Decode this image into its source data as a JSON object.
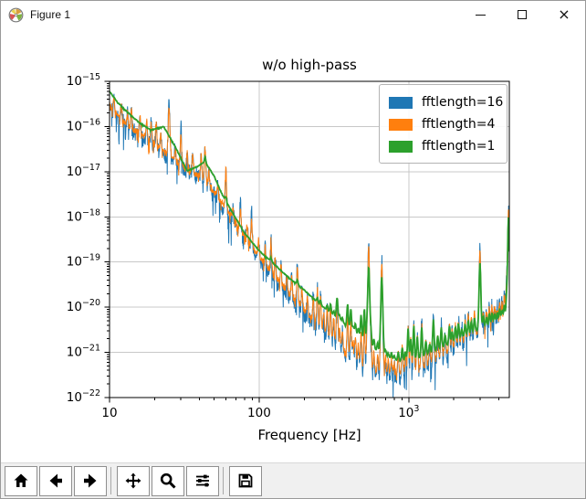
{
  "window": {
    "title": "Figure 1",
    "controls": [
      "minimize",
      "maximize",
      "close"
    ]
  },
  "chart_data": {
    "type": "line",
    "title": "w/o high-pass",
    "xlabel": "Frequency [Hz]",
    "ylabel": "",
    "xscale": "log",
    "yscale": "log",
    "xlim": [
      10,
      4700
    ],
    "ylim_exponents": [
      -22,
      -15
    ],
    "grid": true,
    "legend_position": "upper right",
    "x_ticks": [
      {
        "value": 10,
        "label": "10",
        "exp": ""
      },
      {
        "value": 100,
        "label": "100",
        "exp": ""
      },
      {
        "value": 1000,
        "label": "10",
        "exp": "3"
      }
    ],
    "y_tick_exponents": [
      -15,
      -16,
      -17,
      -18,
      -19,
      -20,
      -21,
      -22
    ],
    "series": [
      {
        "name": "fftlength=16",
        "color": "#1f77b4",
        "noise_halfrange_decades": 0.22,
        "samples": 1600,
        "stroke_width": 1.0,
        "line_height_index": 1,
        "backbone_log10": [
          [
            10,
            -15.6
          ],
          [
            12.6,
            -15.95
          ],
          [
            15.8,
            -16.2
          ],
          [
            20,
            -16.45
          ],
          [
            25,
            -16.7
          ],
          [
            31.6,
            -16.95
          ],
          [
            40,
            -17.15
          ],
          [
            50,
            -17.5
          ],
          [
            63,
            -17.95
          ],
          [
            79,
            -18.45
          ],
          [
            100,
            -18.95
          ],
          [
            126,
            -19.4
          ],
          [
            158,
            -19.8
          ],
          [
            200,
            -20.15
          ],
          [
            251,
            -20.55
          ],
          [
            316,
            -20.9
          ],
          [
            398,
            -21.2
          ],
          [
            500,
            -21.5
          ],
          [
            631,
            -21.62
          ],
          [
            794,
            -21.65
          ],
          [
            1000,
            -21.55
          ],
          [
            1260,
            -21.4
          ],
          [
            1580,
            -21.22
          ],
          [
            2000,
            -21.0
          ],
          [
            2510,
            -20.75
          ],
          [
            3160,
            -20.55
          ],
          [
            3800,
            -20.42
          ],
          [
            4360,
            -20.3
          ],
          [
            4700,
            -20.0
          ]
        ]
      },
      {
        "name": "fftlength=4",
        "color": "#ff7f0e",
        "noise_halfrange_decades": 0.1,
        "samples": 1600,
        "stroke_width": 1.0,
        "line_height_index": 2,
        "backbone_log10": [
          [
            10,
            -15.55
          ],
          [
            12.6,
            -15.9
          ],
          [
            15.8,
            -16.15
          ],
          [
            20,
            -16.4
          ],
          [
            25,
            -16.65
          ],
          [
            31.6,
            -16.9
          ],
          [
            40,
            -17.1
          ],
          [
            50,
            -17.45
          ],
          [
            63,
            -17.9
          ],
          [
            79,
            -18.4
          ],
          [
            100,
            -18.88
          ],
          [
            126,
            -19.3
          ],
          [
            158,
            -19.7
          ],
          [
            200,
            -20.05
          ],
          [
            251,
            -20.42
          ],
          [
            316,
            -20.75
          ],
          [
            398,
            -21.05
          ],
          [
            500,
            -21.32
          ],
          [
            631,
            -21.45
          ],
          [
            794,
            -21.48
          ],
          [
            1000,
            -21.4
          ],
          [
            1260,
            -21.28
          ],
          [
            1580,
            -21.1
          ],
          [
            2000,
            -20.9
          ],
          [
            2510,
            -20.68
          ],
          [
            3160,
            -20.48
          ],
          [
            3800,
            -20.35
          ],
          [
            4360,
            -20.22
          ],
          [
            4700,
            -19.95
          ]
        ]
      },
      {
        "name": "fftlength=1",
        "color": "#2ca02c",
        "noise_halfrange_decades": 0.015,
        "samples": 900,
        "stroke_width": 1.8,
        "line_height_index": 3,
        "backbone_log10": [
          [
            10,
            -15.22
          ],
          [
            11.2,
            -15.45
          ],
          [
            12.6,
            -15.62
          ],
          [
            15.8,
            -15.92
          ],
          [
            19,
            -16.08
          ],
          [
            23,
            -16.0
          ],
          [
            27.5,
            -16.45
          ],
          [
            33,
            -16.98
          ],
          [
            38,
            -16.9
          ],
          [
            43.5,
            -16.78
          ],
          [
            50,
            -17.1
          ],
          [
            57.5,
            -17.55
          ],
          [
            67.6,
            -17.95
          ],
          [
            79.4,
            -18.35
          ],
          [
            100,
            -18.75
          ],
          [
            126,
            -19.05
          ],
          [
            158,
            -19.35
          ],
          [
            200,
            -19.62
          ],
          [
            251,
            -19.92
          ],
          [
            316,
            -20.18
          ],
          [
            398,
            -20.45
          ],
          [
            500,
            -20.72
          ],
          [
            631,
            -21.0
          ],
          [
            760,
            -21.15
          ],
          [
            890,
            -21.2
          ],
          [
            1120,
            -21.15
          ],
          [
            1410,
            -21.0
          ],
          [
            1780,
            -20.85
          ],
          [
            2240,
            -20.68
          ],
          [
            2820,
            -20.52
          ],
          [
            3550,
            -20.38
          ],
          [
            4170,
            -20.28
          ],
          [
            4700,
            -20.2
          ]
        ]
      }
    ],
    "spectral_lines_comment": "[freq_Hz, height_blue, height_orange, height_green (decades above backbone), optional_width_logf]",
    "spectral_lines": [
      [
        10.7,
        0.3,
        0.28,
        0
      ],
      [
        12,
        0.35,
        0.3,
        0
      ],
      [
        13.2,
        0.3,
        0.25,
        0
      ],
      [
        14,
        0.45,
        0.4,
        0
      ],
      [
        16,
        0.45,
        0.4,
        0
      ],
      [
        17.7,
        0.45,
        0.4,
        0
      ],
      [
        19,
        0.45,
        0.42,
        0
      ],
      [
        20.5,
        0.55,
        0.5,
        0
      ],
      [
        22,
        0.4,
        0.35,
        0
      ],
      [
        25,
        1.3,
        1.05,
        0,
        0.006
      ],
      [
        27.5,
        0.35,
        0.3,
        0
      ],
      [
        30,
        0.85,
        0.65,
        0
      ],
      [
        33,
        0.4,
        0.35,
        0
      ],
      [
        36,
        0.5,
        0.4,
        0
      ],
      [
        41,
        0.55,
        0.5,
        0
      ],
      [
        43.5,
        0.9,
        0.8,
        0.1
      ],
      [
        46,
        0.4,
        0.35,
        0
      ],
      [
        53,
        0.3,
        0.25,
        0
      ],
      [
        59.9,
        0.95,
        0.9,
        0.1
      ],
      [
        67,
        0.3,
        0.2,
        0
      ],
      [
        75,
        0.65,
        0.45,
        0
      ],
      [
        83,
        0.4,
        0.3,
        0
      ],
      [
        89,
        0.8,
        0.55,
        0
      ],
      [
        99,
        0.45,
        0.35,
        0
      ],
      [
        110,
        0.5,
        0.4,
        0
      ],
      [
        120,
        0.85,
        0.7,
        0.1
      ],
      [
        128,
        0.55,
        0.4,
        0
      ],
      [
        140,
        0.5,
        0.4,
        0
      ],
      [
        153,
        0.45,
        0.35,
        0
      ],
      [
        165,
        0.55,
        0.45,
        0
      ],
      [
        180,
        0.95,
        0.8,
        0.1
      ],
      [
        193,
        0.5,
        0.4,
        0
      ],
      [
        210,
        0.45,
        0.35,
        0
      ],
      [
        230,
        0.65,
        0.5,
        0
      ],
      [
        245,
        0.95,
        0.75,
        0.1
      ],
      [
        257,
        0.85,
        0.7,
        0.1
      ],
      [
        270,
        0.5,
        0.4,
        0
      ],
      [
        285,
        0.75,
        0.6,
        0.1
      ],
      [
        300,
        0.85,
        0.7,
        0.2
      ],
      [
        315,
        0.6,
        0.5,
        0.1
      ],
      [
        332,
        1.25,
        1.05,
        0.45,
        0.005
      ],
      [
        345,
        0.5,
        0.4,
        0.1
      ],
      [
        360,
        0.5,
        0.4,
        0.1
      ],
      [
        390,
        1.05,
        0.85,
        0.5
      ],
      [
        410,
        0.95,
        0.8,
        0.45
      ],
      [
        425,
        0.5,
        0.4,
        0.1
      ],
      [
        440,
        0.6,
        0.5,
        0.2
      ],
      [
        460,
        0.5,
        0.4,
        0.15
      ],
      [
        480,
        0.85,
        0.7,
        0.5
      ],
      [
        505,
        1.1,
        0.95,
        0.7
      ],
      [
        525,
        0.5,
        0.4,
        0.2
      ],
      [
        540,
        2.95,
        2.7,
        1.7,
        0.007
      ],
      [
        560,
        0.6,
        0.5,
        0.25
      ],
      [
        585,
        0.5,
        0.4,
        0.2
      ],
      [
        620,
        0.5,
        0.4,
        0.2
      ],
      [
        660,
        2.6,
        2.4,
        1.7,
        0.007
      ],
      [
        700,
        0.45,
        0.35,
        0.15
      ],
      [
        730,
        0.4,
        0.3,
        0.1
      ],
      [
        765,
        0.45,
        0.35,
        0.15
      ],
      [
        800,
        0.4,
        0.3,
        0.1
      ],
      [
        850,
        0.55,
        0.45,
        0.2
      ],
      [
        905,
        0.7,
        0.55,
        0.3
      ],
      [
        950,
        0.5,
        0.4,
        0.2
      ],
      [
        990,
        1.15,
        0.95,
        0.7
      ],
      [
        1030,
        0.85,
        0.7,
        0.45
      ],
      [
        1080,
        1.2,
        1.0,
        0.75
      ],
      [
        1140,
        0.9,
        0.75,
        0.5
      ],
      [
        1220,
        1.1,
        0.9,
        0.65
      ],
      [
        1300,
        0.65,
        0.5,
        0.3
      ],
      [
        1380,
        0.5,
        0.4,
        0.2
      ],
      [
        1460,
        1.15,
        0.95,
        0.7
      ],
      [
        1560,
        0.6,
        0.5,
        0.3
      ],
      [
        1650,
        0.8,
        0.65,
        0.45
      ],
      [
        1750,
        0.5,
        0.4,
        0.25
      ],
      [
        1870,
        0.75,
        0.6,
        0.4
      ],
      [
        1950,
        0.5,
        0.4,
        0.25
      ],
      [
        2050,
        0.6,
        0.5,
        0.3
      ],
      [
        2150,
        0.7,
        0.55,
        0.35
      ],
      [
        2260,
        0.45,
        0.35,
        0.2
      ],
      [
        2380,
        0.55,
        0.45,
        0.25
      ],
      [
        2500,
        0.65,
        0.5,
        0.3
      ],
      [
        2620,
        0.5,
        0.4,
        0.25
      ],
      [
        2750,
        0.6,
        0.5,
        0.3
      ],
      [
        2990,
        1.95,
        1.75,
        1.45,
        0.006
      ],
      [
        3150,
        0.5,
        0.4,
        0.25
      ],
      [
        3300,
        0.45,
        0.35,
        0.2
      ],
      [
        3450,
        0.55,
        0.45,
        0.25
      ],
      [
        3600,
        0.5,
        0.4,
        0.25
      ],
      [
        3750,
        0.45,
        0.35,
        0.2
      ],
      [
        3900,
        0.4,
        0.3,
        0.2
      ],
      [
        4050,
        0.5,
        0.4,
        0.25
      ],
      [
        4200,
        0.45,
        0.35,
        0.2
      ],
      [
        4350,
        0.55,
        0.45,
        0.3
      ],
      [
        4500,
        0.6,
        0.5,
        0.35
      ],
      [
        4640,
        2.3,
        2.2,
        2.2,
        0.006
      ]
    ]
  },
  "toolbar": {
    "button_icons": [
      "home",
      "back",
      "forward",
      "pan",
      "zoom",
      "configure-subplots",
      "save"
    ],
    "separators_after": [
      2,
      5
    ]
  }
}
